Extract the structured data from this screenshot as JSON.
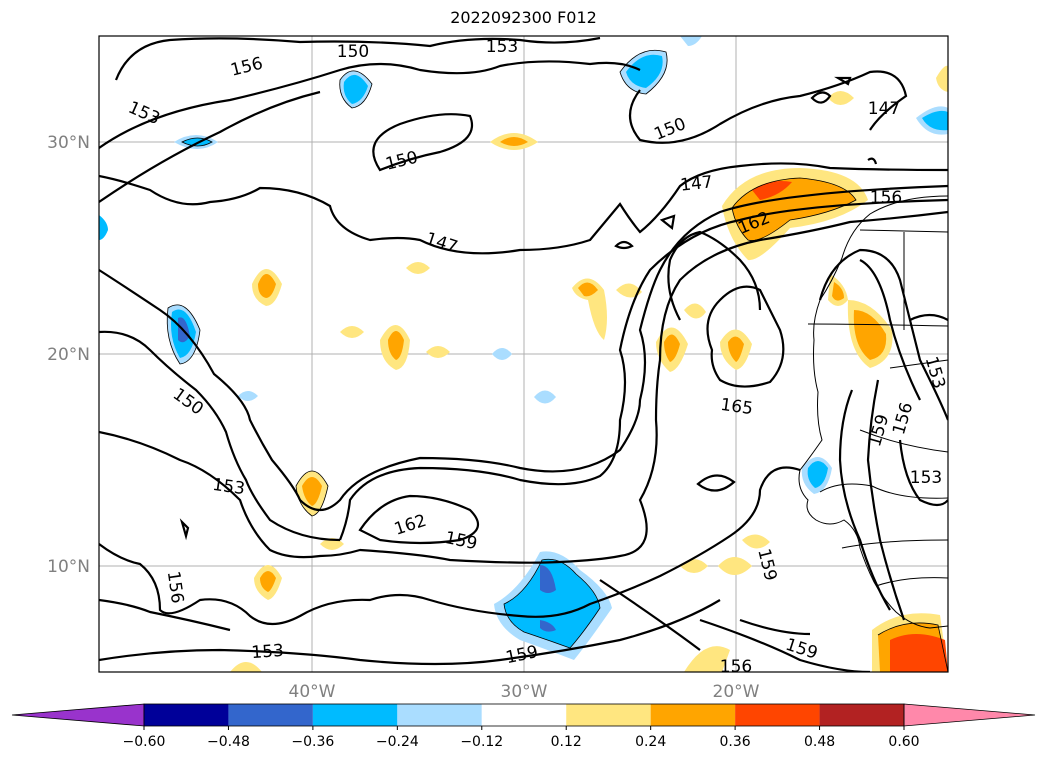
{
  "title": "2022092300 F012",
  "lat_labels": [
    "30°N",
    "20°N",
    "10°N"
  ],
  "lon_labels": [
    "40°W",
    "30°W",
    "20°W"
  ],
  "colorbar": {
    "ticks": [
      "−0.60",
      "−0.48",
      "−0.36",
      "−0.24",
      "−0.12",
      "0.12",
      "0.24",
      "0.36",
      "0.48",
      "0.60"
    ],
    "colors": [
      "#9933cc",
      "#000099",
      "#3366cc",
      "#00bbff",
      "#aaddff",
      "#ffffff",
      "#ffe680",
      "#ffa500",
      "#ff4500",
      "#b22222",
      "#ff88aa"
    ]
  },
  "contour_labels": [
    "156",
    "150",
    "153",
    "153",
    "150",
    "147",
    "150",
    "147",
    "156",
    "162",
    "147",
    "150",
    "165",
    "153",
    "156",
    "159",
    "153",
    "153",
    "162",
    "159",
    "156",
    "159",
    "153",
    "159",
    "156",
    "159"
  ]
}
